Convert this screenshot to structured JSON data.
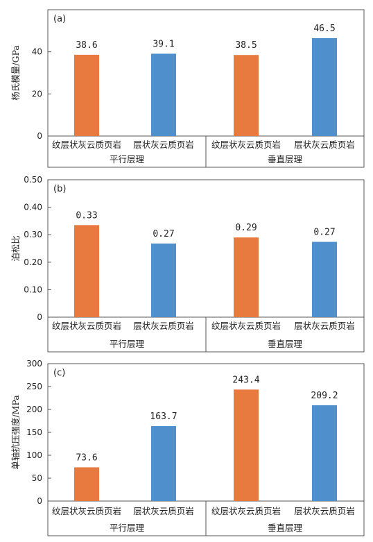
{
  "colors": {
    "orange": "#E8793F",
    "blue": "#4F8FCC"
  },
  "chart_data": [
    {
      "type": "bar",
      "panel_label": "(a)",
      "ylabel": "杨氏模量/GPa",
      "ylim": [
        0,
        60
      ],
      "yticks": [
        0,
        20,
        40,
        60
      ],
      "ytick_labels": [
        "0",
        "20",
        "40",
        ""
      ],
      "groups": [
        "平行层理",
        "垂直层理"
      ],
      "categories": [
        "纹层状灰云质页岩",
        "层状灰云质页岩",
        "纹层状灰云质页岩",
        "层状灰云质页岩"
      ],
      "bar_colors": [
        "orange",
        "blue",
        "orange",
        "blue"
      ],
      "values": [
        38.6,
        39.1,
        38.5,
        46.5
      ],
      "value_labels": [
        "38.6",
        "39.1",
        "38.5",
        "46.5"
      ]
    },
    {
      "type": "bar",
      "panel_label": "(b)",
      "ylabel": "泊松比",
      "ylim": [
        0,
        0.5
      ],
      "yticks": [
        0,
        0.1,
        0.2,
        0.3,
        0.4,
        0.5
      ],
      "ytick_labels": [
        "0",
        "0.10",
        "0.20",
        "0.30",
        "0.40",
        "0.50"
      ],
      "groups": [
        "平行层理",
        "垂直层理"
      ],
      "categories": [
        "纹层状灰云质页岩",
        "层状灰云质页岩",
        "纹层状灰云质页岩",
        "层状灰云质页岩"
      ],
      "bar_colors": [
        "orange",
        "blue",
        "orange",
        "blue"
      ],
      "values": [
        0.335,
        0.268,
        0.29,
        0.274
      ],
      "value_labels": [
        "0.33",
        "0.27",
        "0.29",
        "0.27"
      ]
    },
    {
      "type": "bar",
      "panel_label": "(c)",
      "ylabel": "单轴抗压强度/MPa",
      "ylim": [
        0,
        300
      ],
      "yticks": [
        0,
        50,
        100,
        150,
        200,
        250,
        300
      ],
      "ytick_labels": [
        "0",
        "50",
        "100",
        "150",
        "200",
        "250",
        "300"
      ],
      "groups": [
        "平行层理",
        "垂直层理"
      ],
      "categories": [
        "纹层状灰云质页岩",
        "层状灰云质页岩",
        "纹层状灰云质页岩",
        "层状灰云质页岩"
      ],
      "bar_colors": [
        "orange",
        "blue",
        "orange",
        "blue"
      ],
      "values": [
        73.6,
        163.7,
        243.4,
        209.2
      ],
      "value_labels": [
        "73.6",
        "163.7",
        "243.4",
        "209.2"
      ]
    }
  ]
}
